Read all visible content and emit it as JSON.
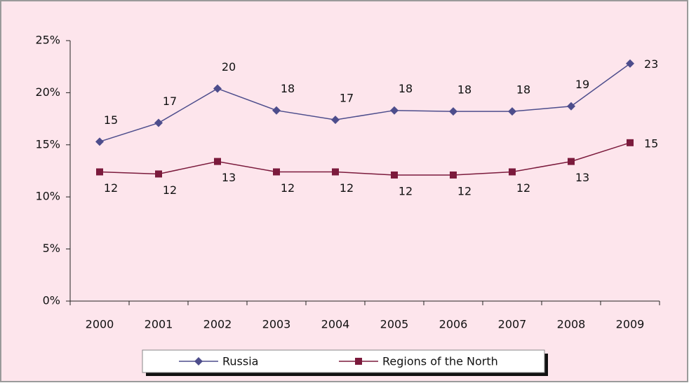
{
  "chart_data": {
    "type": "line",
    "categories": [
      "2000",
      "2001",
      "2002",
      "2003",
      "2004",
      "2005",
      "2006",
      "2007",
      "2008",
      "2009"
    ],
    "series": [
      {
        "name": "Russia",
        "color": "#4d4d8c",
        "marker": "diamond",
        "values": [
          15.3,
          17.1,
          20.4,
          18.3,
          17.4,
          18.3,
          18.2,
          18.2,
          18.7,
          22.8
        ],
        "value_labels": [
          "15",
          "17",
          "20",
          "18",
          "17",
          "18",
          "18",
          "18",
          "19",
          "23"
        ]
      },
      {
        "name": "Regions of the North",
        "color": "#7b1a3c",
        "marker": "square",
        "values": [
          12.4,
          12.2,
          13.4,
          12.4,
          12.4,
          12.1,
          12.1,
          12.4,
          13.4,
          15.2
        ],
        "value_labels": [
          "12",
          "12",
          "13",
          "12",
          "12",
          "12",
          "12",
          "12",
          "13",
          "15"
        ]
      }
    ],
    "ylim": [
      0,
      25
    ],
    "yticks": [
      {
        "value": 0,
        "label": "0%"
      },
      {
        "value": 5,
        "label": "5%"
      },
      {
        "value": 10,
        "label": "10%"
      },
      {
        "value": 15,
        "label": "15%"
      },
      {
        "value": 20,
        "label": "20%"
      },
      {
        "value": 25,
        "label": "25%"
      }
    ],
    "grid": false,
    "legend": "bottom"
  }
}
